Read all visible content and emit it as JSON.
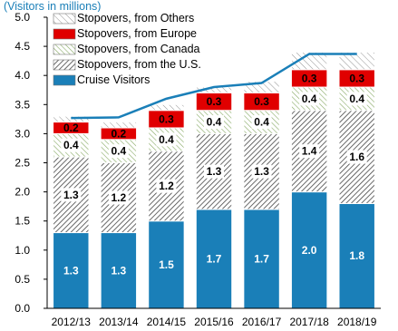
{
  "chart_data": {
    "type": "bar",
    "stacked": true,
    "subtitle": "(Visitors in millions)",
    "categories": [
      "2012/13",
      "2013/14",
      "2014/15",
      "2015/16",
      "2016/17",
      "2017/18",
      "2018/19"
    ],
    "series": [
      {
        "name": "Cruise Visitors",
        "values": [
          1.3,
          1.3,
          1.5,
          1.7,
          1.7,
          2.0,
          1.8
        ],
        "labels": [
          "1.3",
          "1.3",
          "1.5",
          "1.7",
          "1.7",
          "2.0",
          "1.8"
        ],
        "color": "#1a7fb8"
      },
      {
        "name": "Stopovers, from the U.S.",
        "values": [
          1.3,
          1.2,
          1.2,
          1.3,
          1.3,
          1.4,
          1.6
        ],
        "labels": [
          "1.3",
          "1.2",
          "1.2",
          "1.3",
          "1.3",
          "1.4",
          "1.6"
        ],
        "color": "#555555"
      },
      {
        "name": "Stopovers, from Canada",
        "values": [
          0.4,
          0.4,
          0.4,
          0.4,
          0.4,
          0.4,
          0.4
        ],
        "labels": [
          "0.4",
          "0.4",
          "0.4",
          "0.4",
          "0.4",
          "0.4",
          "0.4"
        ],
        "color": "#88aa66"
      },
      {
        "name": "Stopovers, from Europe",
        "values": [
          0.2,
          0.2,
          0.3,
          0.3,
          0.3,
          0.3,
          0.3
        ],
        "labels": [
          "0.2",
          "0.2",
          "0.3",
          "0.3",
          "0.3",
          "0.3",
          "0.3"
        ],
        "color": "#e00000"
      },
      {
        "name": "Stopovers, from Others",
        "values": [
          0.1,
          0.1,
          0.1,
          0.1,
          0.2,
          0.3,
          0.3
        ],
        "color": "#777777"
      }
    ],
    "total_line": {
      "values": [
        3.27,
        3.28,
        3.6,
        3.8,
        3.87,
        4.37,
        4.37
      ],
      "color": "#1a7fb8"
    },
    "ylim": [
      0,
      5.0
    ],
    "yticks": [
      "0.0",
      "0.5",
      "1.0",
      "1.5",
      "2.0",
      "2.5",
      "3.0",
      "3.5",
      "4.0",
      "4.5",
      "5.0"
    ],
    "legend_position": "top-left",
    "grid": false
  }
}
